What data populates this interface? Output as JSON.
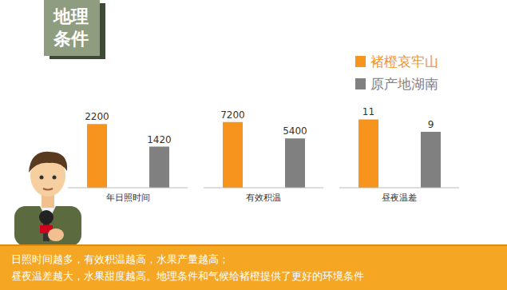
{
  "title_box": "地理条件",
  "caption": [
    "日照时间越多，有效积温越高，水果产量越高；",
    "昼夜温差越大，水果甜度越高。地理条件和气候给褚橙提供了更好的环境条件"
  ],
  "chart_data": [
    {
      "type": "bar",
      "categories": [
        "年日照时间"
      ],
      "series": [
        {
          "name": "褚橙哀牢山",
          "color": "#f7941d",
          "values": [
            2200
          ]
        },
        {
          "name": "原产地湖南",
          "color": "#808080",
          "values": [
            1420
          ]
        }
      ],
      "ylim": [
        0,
        2900
      ],
      "data_labels": true,
      "tick_labels": "x",
      "legend": "top right"
    },
    {
      "type": "bar",
      "categories": [
        "有效积温"
      ],
      "series": [
        {
          "name": "褚橙哀牢山",
          "color": "#f7941d",
          "values": [
            7200
          ]
        },
        {
          "name": "原产地湖南",
          "color": "#808080",
          "values": [
            5400
          ]
        }
      ],
      "ylim": [
        0,
        9200
      ],
      "data_labels": true,
      "tick_labels": "x"
    },
    {
      "type": "bar",
      "categories": [
        "昼夜温差"
      ],
      "series": [
        {
          "name": "褚橙哀牢山",
          "color": "#f7941d",
          "values": [
            11
          ]
        },
        {
          "name": "原产地湖南",
          "color": "#808080",
          "values": [
            9
          ]
        }
      ],
      "ylim": [
        0,
        13.5
      ],
      "data_labels": true,
      "tick_labels": "x"
    }
  ]
}
